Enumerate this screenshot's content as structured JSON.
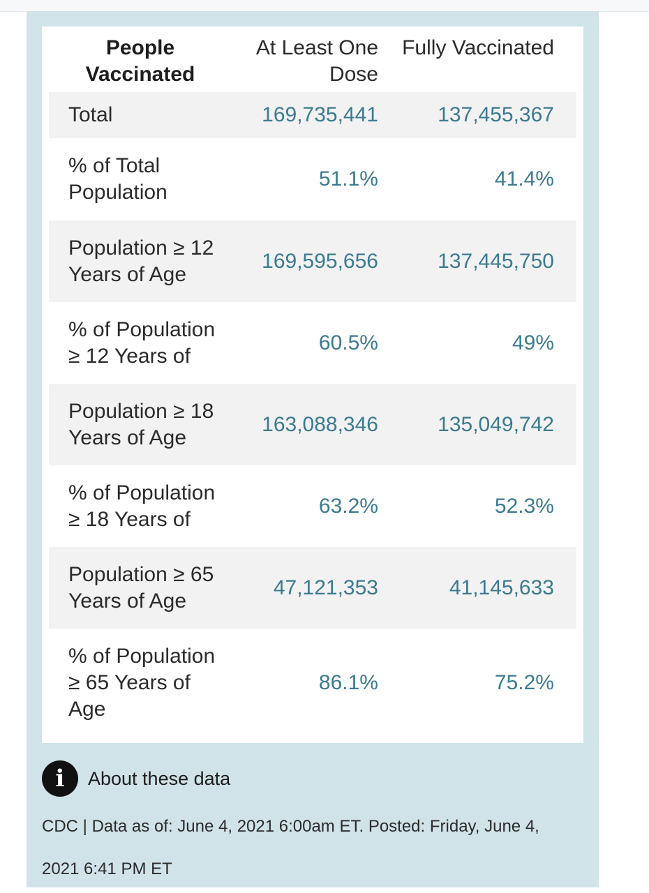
{
  "table": {
    "header": {
      "label": "People Vaccinated",
      "col1": "At Least One Dose",
      "col2": "Fully Vaccinated"
    },
    "rows": [
      {
        "label": "Total",
        "one_dose": "169,735,441",
        "fully": "137,455,367"
      },
      {
        "label": "% of Total Population",
        "one_dose": "51.1%",
        "fully": "41.4%"
      },
      {
        "label": "Population ≥ 12 Years of Age",
        "one_dose": "169,595,656",
        "fully": "137,445,750"
      },
      {
        "label": "% of Population ≥ 12 Years of",
        "one_dose": "60.5%",
        "fully": "49%"
      },
      {
        "label": "Population ≥ 18 Years of Age",
        "one_dose": "163,088,346",
        "fully": "135,049,742"
      },
      {
        "label": "% of Population ≥ 18 Years of",
        "one_dose": "63.2%",
        "fully": "52.3%"
      },
      {
        "label": "Population ≥ 65 Years of Age",
        "one_dose": "47,121,353",
        "fully": "41,145,633"
      },
      {
        "label": "% of Population ≥ 65 Years of Age",
        "one_dose": "86.1%",
        "fully": "75.2%"
      }
    ]
  },
  "about": {
    "icon": "info-icon",
    "icon_glyph": "i",
    "label": "About these data"
  },
  "footer": {
    "text": "CDC | Data as of: June 4, 2021 6:00am ET. Posted: Friday, June 4, 2021 6:41 PM ET"
  },
  "colors": {
    "panel": "#d0e3e8",
    "value_text": "#3c7a8f",
    "shaded_row": "#f2f2f2"
  }
}
